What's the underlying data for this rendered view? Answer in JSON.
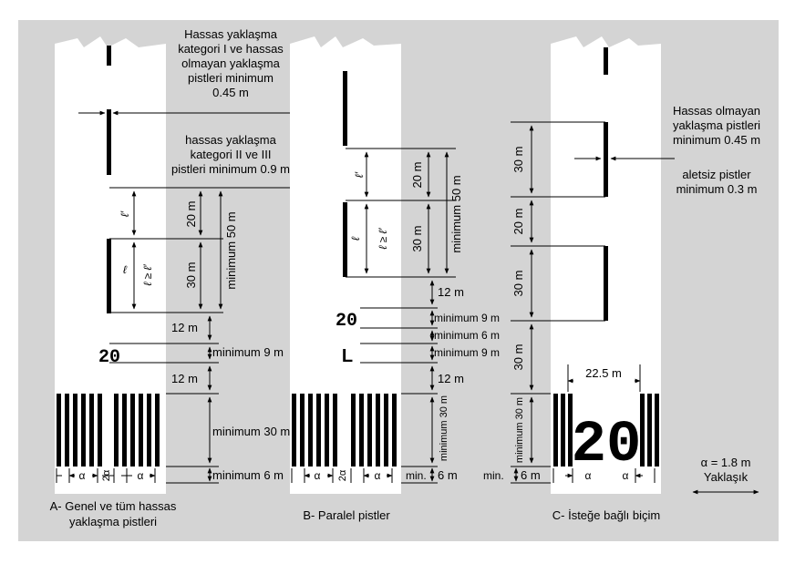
{
  "colors": {
    "background": "#d4d4d4",
    "runway": "#ffffff",
    "ink": "#000000"
  },
  "panel_a": {
    "caption": [
      "A- Genel ve tüm hassas",
      "yaklaşma pistleri"
    ],
    "top_note": [
      "Hassas yaklaşma",
      "kategori I ve hassas",
      "olmayan yaklaşma",
      "pistleri minimum",
      "0.45 m"
    ],
    "mid_note": [
      "hassas yaklaşma",
      "kategori II ve III",
      "pistleri minimum 0.9 m"
    ],
    "dim_20": "20 m",
    "dim_30": "30 m",
    "dim_min50": "minimum 50 m",
    "dim_12a": "12 m",
    "dim_min9": "minimum 9 m",
    "dim_12b": "12 m",
    "dim_min30": "minimum 30 m",
    "dim_min6": "minimum 6 m",
    "number": "20",
    "l_prime": "ℓ′",
    "l": "ℓ",
    "l_ge": "ℓ ≥ ℓ′",
    "alpha": "α",
    "two_alpha": "2α"
  },
  "panel_b": {
    "caption": "B- Paralel pistler",
    "dim_20": "20 m",
    "dim_30": "30 m",
    "dim_min50": "minimum 50 m",
    "dim_12a": "12 m",
    "dim_min9a": "minimum 9 m",
    "dim_min6a": "minimum 6 m",
    "dim_min9b": "minimum 9 m",
    "dim_12b": "12 m",
    "dim_min30": "minimum 30 m",
    "dim_min": "min.",
    "dim_6": "6 m",
    "number": "20",
    "letter": "L",
    "l_prime": "ℓ′",
    "l": "ℓ",
    "l_ge": "ℓ ≥ ℓ′",
    "alpha": "α",
    "two_alpha": "2α"
  },
  "panel_c": {
    "caption": "C- İsteğe bağlı biçim",
    "note1": [
      "Hassas olmayan",
      "yaklaşma pistleri",
      "minimum 0.45 m"
    ],
    "note2": [
      "aletsiz pistler",
      "minimum 0.3 m"
    ],
    "dim_30a": "30 m",
    "dim_20": "20 m",
    "dim_30b": "30 m",
    "dim_30c": "30 m",
    "dim_min30": "minimum 30 m",
    "dim_min": "min.",
    "dim_6": "6 m",
    "dim_225": "22.5 m",
    "number": "20",
    "alpha": "α"
  },
  "legend": {
    "alpha_value": "α = 1.8 m",
    "approx": "Yaklaşık"
  }
}
